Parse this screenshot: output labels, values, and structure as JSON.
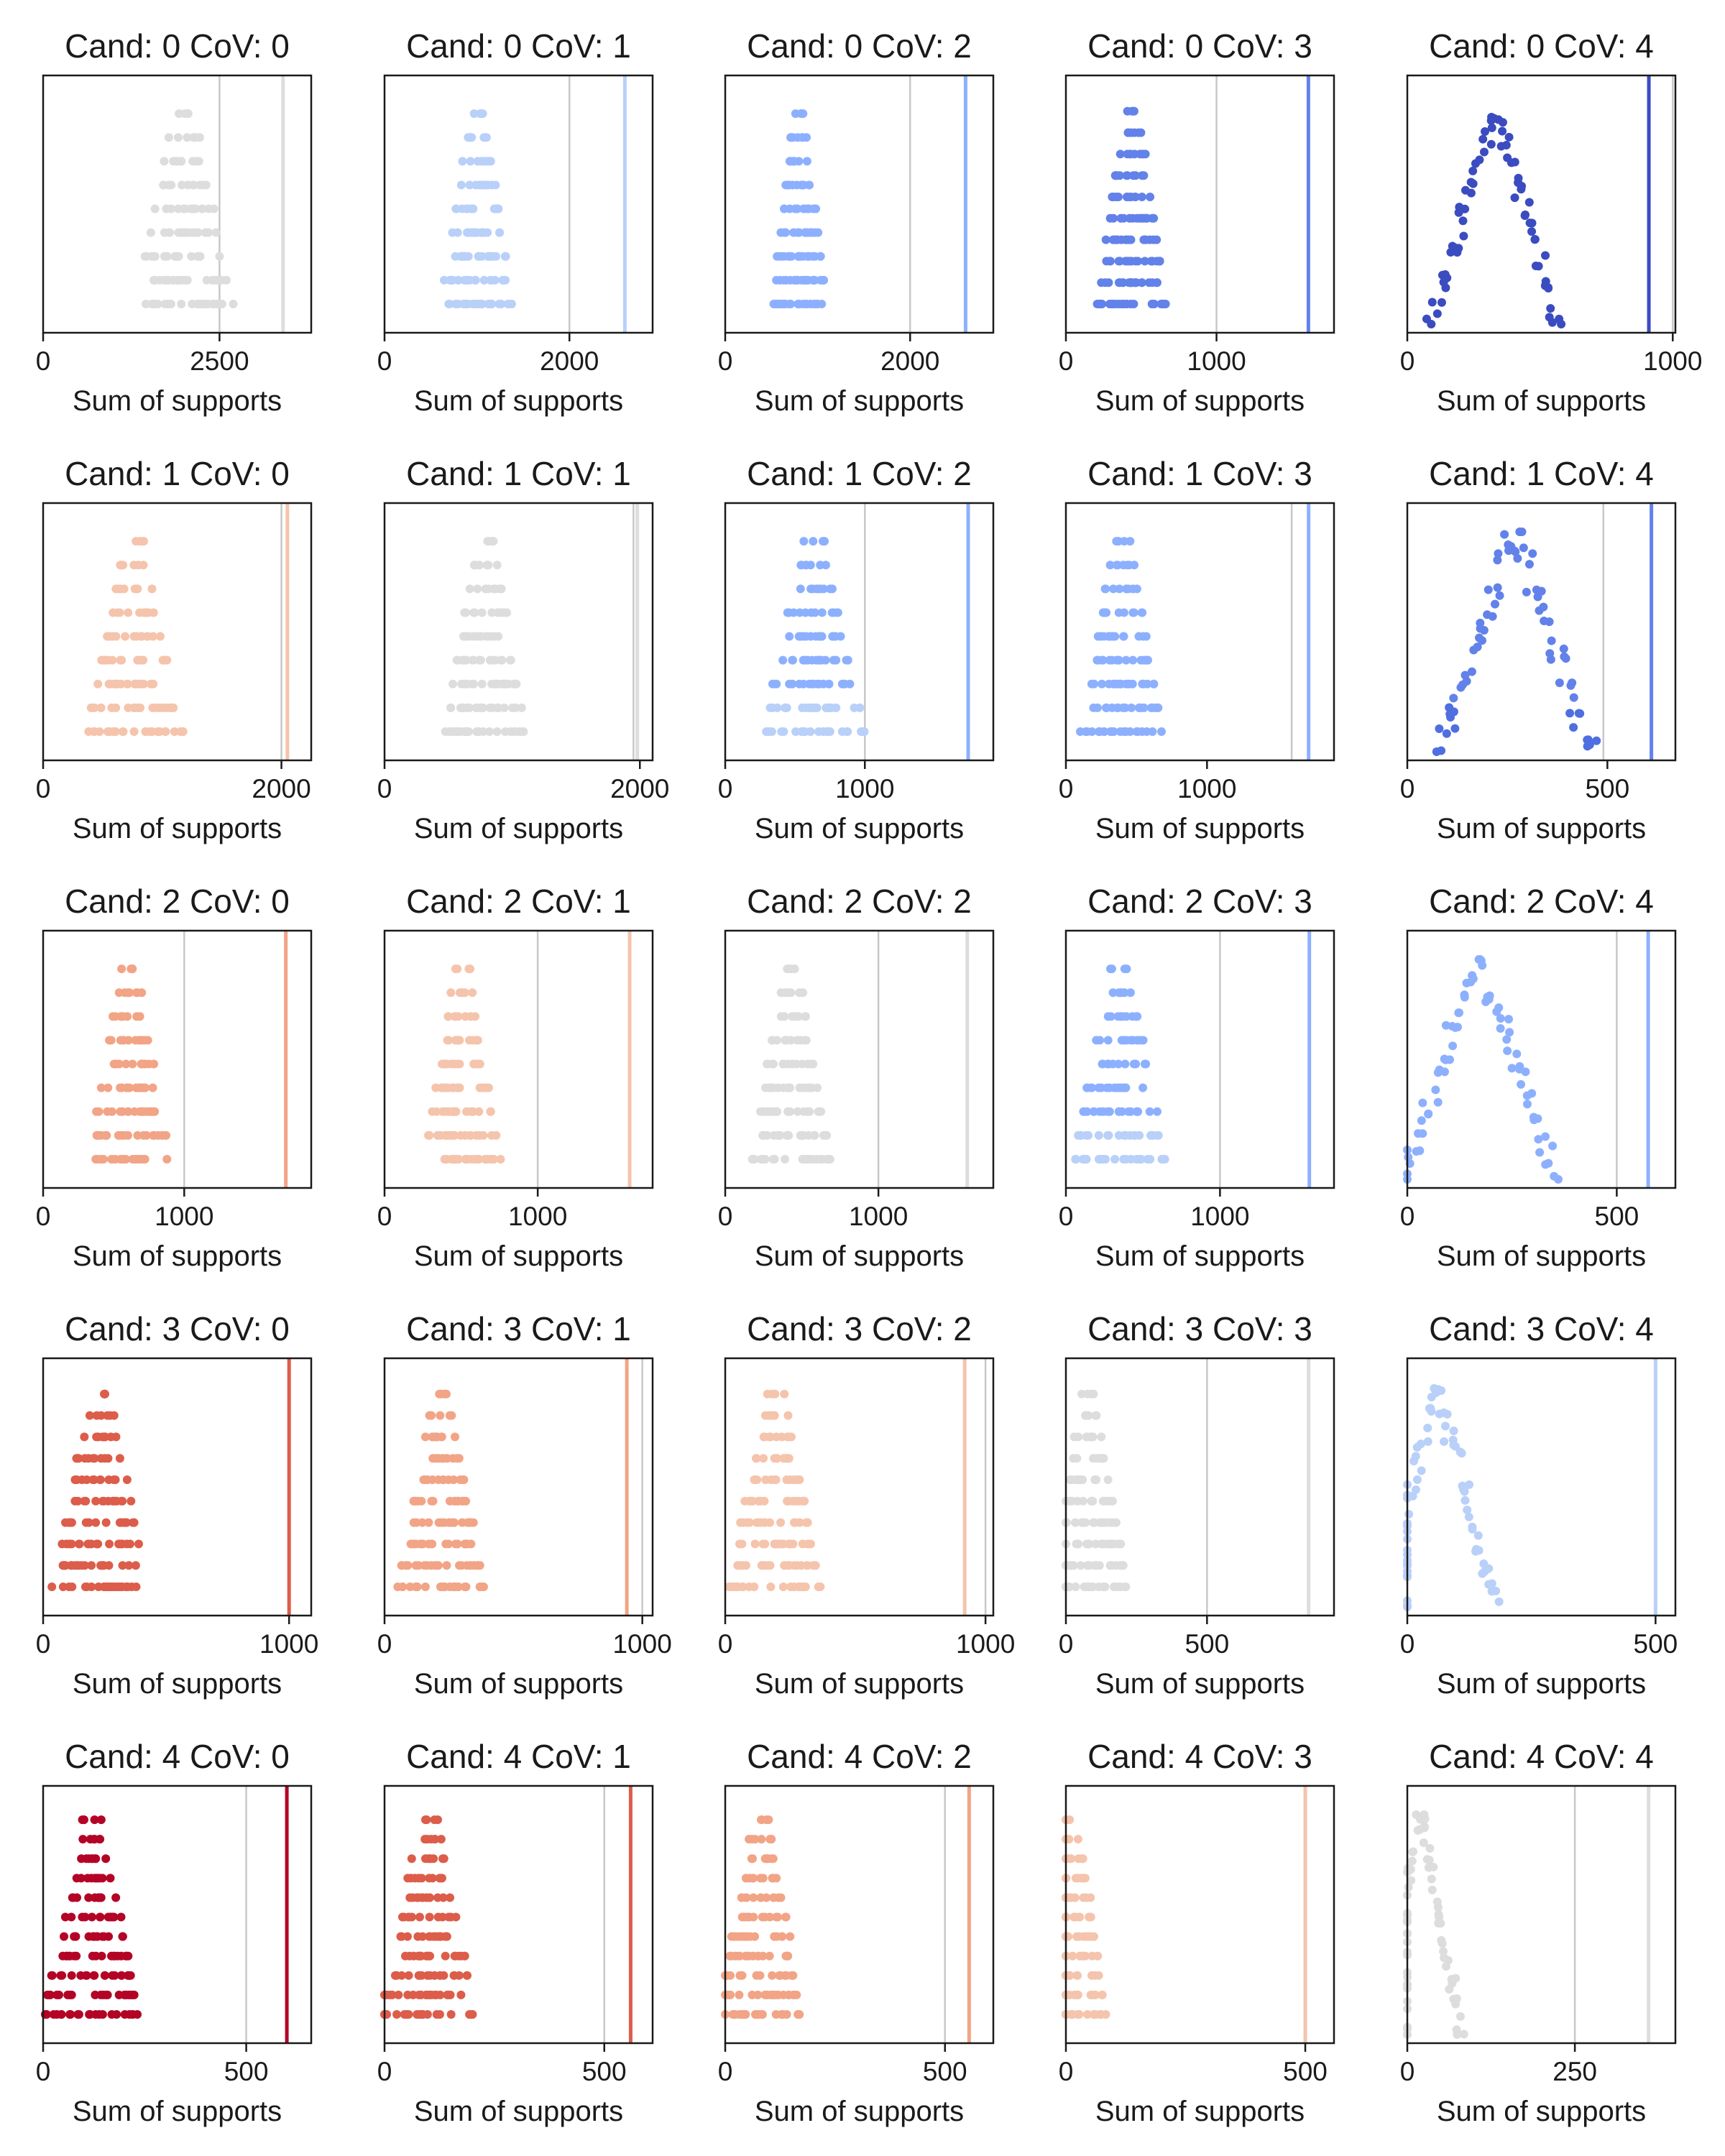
{
  "figure": {
    "background": "#ffffff",
    "grid_columns": 5,
    "grid_rows": 5,
    "reference_line_color": "#c8c8c8"
  },
  "chart_data": [
    {
      "type": "scatter",
      "title": "Cand: 0 CoV: 0",
      "xlabel": "Sum of supports",
      "xlim": [
        0,
        3800
      ],
      "xticks": [
        0,
        2500
      ],
      "xtick_labels": [
        "0",
        "2500"
      ],
      "center": 2000,
      "spread": 700,
      "levels": 9,
      "reference_line": 2500,
      "result_line": 3400,
      "color": "#dddddd",
      "shape": "triangle"
    },
    {
      "type": "scatter",
      "title": "Cand: 0 CoV: 1",
      "xlabel": "Sum of supports",
      "xlim": [
        0,
        2900
      ],
      "xticks": [
        0,
        2000
      ],
      "xtick_labels": [
        "0",
        "2000"
      ],
      "center": 1000,
      "spread": 400,
      "levels": 9,
      "reference_line": 2000,
      "result_line": 2600,
      "color": "#b9d0f9",
      "shape": "triangle"
    },
    {
      "type": "scatter",
      "title": "Cand: 0 CoV: 2",
      "xlabel": "Sum of supports",
      "xlim": [
        0,
        2900
      ],
      "xticks": [
        0,
        2000
      ],
      "xtick_labels": [
        "0",
        "2000"
      ],
      "center": 800,
      "spread": 300,
      "levels": 9,
      "reference_line": 2000,
      "result_line": 2600,
      "color": "#8db0fe",
      "shape": "triangle"
    },
    {
      "type": "scatter",
      "title": "Cand: 0 CoV: 3",
      "xlabel": "Sum of supports",
      "xlim": [
        0,
        1780
      ],
      "xticks": [
        0,
        1000
      ],
      "xtick_labels": [
        "0",
        "1000"
      ],
      "center": 440,
      "spread": 240,
      "levels": 10,
      "reference_line": 1000,
      "result_line": 1610,
      "color": "#6282ea",
      "shape": "triangle"
    },
    {
      "type": "scatter",
      "title": "Cand: 0 CoV: 4",
      "xlabel": "Sum of supports",
      "xlim": [
        0,
        1010
      ],
      "xticks": [
        0,
        1000
      ],
      "xtick_labels": [
        "0",
        "1000"
      ],
      "center": 330,
      "spread": 240,
      "levels": 14,
      "reference_line": 1000,
      "result_line": 910,
      "color": "#3b4cc0",
      "shape": "peak"
    },
    {
      "type": "scatter",
      "title": "Cand: 1 CoV: 0",
      "xlabel": "Sum of supports",
      "xlim": [
        0,
        2250
      ],
      "xticks": [
        0,
        2000
      ],
      "xtick_labels": [
        "0",
        "2000"
      ],
      "center": 780,
      "spread": 420,
      "levels": 9,
      "reference_line": 2000,
      "result_line": 2050,
      "color": "#f5c4ac",
      "shape": "triangle"
    },
    {
      "type": "scatter",
      "title": "Cand: 1 CoV: 1",
      "xlabel": "Sum of supports",
      "xlim": [
        0,
        2100
      ],
      "xticks": [
        0,
        2000
      ],
      "xtick_labels": [
        "0",
        "2000"
      ],
      "center": 790,
      "spread": 330,
      "levels": 9,
      "reference_line": 1950,
      "result_line": 1980,
      "color": "#dddddd",
      "shape": "triangle"
    },
    {
      "type": "scatter",
      "title": "Cand: 1 CoV: 2",
      "xlabel": "Sum of supports",
      "xlim": [
        0,
        1920
      ],
      "xticks": [
        0,
        1000
      ],
      "xtick_labels": [
        "0",
        "1000"
      ],
      "center": 640,
      "spread": 380,
      "levels": 9,
      "reference_line": 1000,
      "result_line": 1740,
      "color": "#8db0fe",
      "color_low": "#b9d0f9",
      "shape": "triangle"
    },
    {
      "type": "scatter",
      "title": "Cand: 1 CoV: 3",
      "xlabel": "Sum of supports",
      "xlim": [
        0,
        1900
      ],
      "xticks": [
        0,
        1000
      ],
      "xtick_labels": [
        "0",
        "1000"
      ],
      "center": 400,
      "spread": 300,
      "levels": 9,
      "reference_line": 1600,
      "result_line": 1720,
      "color": "#8db0fe",
      "shape": "triangle"
    },
    {
      "type": "scatter",
      "title": "Cand: 1 CoV: 4",
      "xlabel": "Sum of supports",
      "xlim": [
        0,
        670
      ],
      "xticks": [
        0,
        500
      ],
      "xtick_labels": [
        "0",
        "500"
      ],
      "center": 270,
      "spread": 190,
      "levels": 14,
      "reference_line": 490,
      "result_line": 610,
      "color": "#6282ea",
      "color_low": "#4f6fe0",
      "shape": "peak"
    },
    {
      "type": "scatter",
      "title": "Cand: 2 CoV: 0",
      "xlabel": "Sum of supports",
      "xlim": [
        0,
        1900
      ],
      "xticks": [
        0,
        1000
      ],
      "xtick_labels": [
        "0",
        "1000"
      ],
      "center": 610,
      "spread": 290,
      "levels": 9,
      "reference_line": 1000,
      "result_line": 1720,
      "color": "#f2a486",
      "shape": "triangle"
    },
    {
      "type": "scatter",
      "title": "Cand: 2 CoV: 1",
      "xlabel": "Sum of supports",
      "xlim": [
        0,
        1750
      ],
      "xticks": [
        0,
        1000
      ],
      "xtick_labels": [
        "0",
        "1000"
      ],
      "center": 510,
      "spread": 250,
      "levels": 9,
      "reference_line": 1000,
      "result_line": 1600,
      "color": "#f5c4ac",
      "shape": "triangle"
    },
    {
      "type": "scatter",
      "title": "Cand: 2 CoV: 2",
      "xlabel": "Sum of supports",
      "xlim": [
        0,
        1750
      ],
      "xticks": [
        0,
        1000
      ],
      "xtick_labels": [
        "0",
        "1000"
      ],
      "center": 430,
      "spread": 260,
      "levels": 9,
      "reference_line": 1000,
      "result_line": 1580,
      "color": "#dddddd",
      "shape": "triangle"
    },
    {
      "type": "scatter",
      "title": "Cand: 2 CoV: 3",
      "xlabel": "Sum of supports",
      "xlim": [
        0,
        1740
      ],
      "xticks": [
        0,
        1000
      ],
      "xtick_labels": [
        "0",
        "1000"
      ],
      "center": 350,
      "spread": 310,
      "levels": 9,
      "reference_line": 1000,
      "result_line": 1580,
      "color": "#8db0fe",
      "color_low": "#b9d0f9",
      "shape": "triangle"
    },
    {
      "type": "scatter",
      "title": "Cand: 2 CoV: 4",
      "xlabel": "Sum of supports",
      "xlim": [
        0,
        640
      ],
      "xticks": [
        0,
        500
      ],
      "xtick_labels": [
        "0",
        "500"
      ],
      "center": 170,
      "spread": 180,
      "levels": 14,
      "reference_line": 500,
      "result_line": 575,
      "color": "#8db0fe",
      "shape": "peak"
    },
    {
      "type": "scatter",
      "title": "Cand: 3 CoV: 0",
      "xlabel": "Sum of supports",
      "xlim": [
        0,
        1090
      ],
      "xticks": [
        0,
        1000
      ],
      "xtick_labels": [
        "0",
        "1000"
      ],
      "center": 230,
      "spread": 200,
      "levels": 10,
      "reference_line": 1000,
      "result_line": 1000,
      "color": "#dc5d4a",
      "shape": "triangle"
    },
    {
      "type": "scatter",
      "title": "Cand: 3 CoV: 1",
      "xlabel": "Sum of supports",
      "xlim": [
        0,
        1040
      ],
      "xticks": [
        0,
        1000
      ],
      "xtick_labels": [
        "0",
        "1000"
      ],
      "center": 220,
      "spread": 170,
      "levels": 10,
      "reference_line": 1000,
      "result_line": 940,
      "color": "#f2a486",
      "shape": "triangle"
    },
    {
      "type": "scatter",
      "title": "Cand: 3 CoV: 2",
      "xlabel": "Sum of supports",
      "xlim": [
        0,
        1030
      ],
      "xticks": [
        0,
        1000
      ],
      "xtick_labels": [
        "0",
        "1000"
      ],
      "center": 190,
      "spread": 180,
      "levels": 10,
      "reference_line": 1000,
      "result_line": 920,
      "color": "#f5c4ac",
      "shape": "triangle"
    },
    {
      "type": "scatter",
      "title": "Cand: 3 CoV: 3",
      "xlabel": "Sum of supports",
      "xlim": [
        0,
        950
      ],
      "xticks": [
        0,
        500
      ],
      "xtick_labels": [
        "0",
        "500"
      ],
      "center": 80,
      "spread": 140,
      "levels": 10,
      "reference_line": 500,
      "result_line": 860,
      "color": "#dddddd",
      "shape": "triangle"
    },
    {
      "type": "scatter",
      "title": "Cand: 3 CoV: 4",
      "xlabel": "Sum of supports",
      "xlim": [
        0,
        540
      ],
      "xticks": [
        0,
        500
      ],
      "xtick_labels": [
        "0",
        "500"
      ],
      "center": 60,
      "spread": 120,
      "levels": 14,
      "reference_line": 500,
      "result_line": 500,
      "color": "#b9d0f9",
      "shape": "peak"
    },
    {
      "type": "scatter",
      "title": "Cand: 4 CoV: 0",
      "xlabel": "Sum of supports",
      "xlim": [
        0,
        660
      ],
      "xticks": [
        0,
        500
      ],
      "xtick_labels": [
        "0",
        "500"
      ],
      "center": 120,
      "spread": 120,
      "levels": 11,
      "reference_line": 500,
      "result_line": 600,
      "color": "#b40426",
      "shape": "triangle"
    },
    {
      "type": "scatter",
      "title": "Cand: 4 CoV: 1",
      "xlabel": "Sum of supports",
      "xlim": [
        0,
        610
      ],
      "xticks": [
        0,
        500
      ],
      "xtick_labels": [
        "0",
        "500"
      ],
      "center": 100,
      "spread": 110,
      "levels": 11,
      "reference_line": 500,
      "result_line": 560,
      "color": "#dc5d4a",
      "shape": "triangle"
    },
    {
      "type": "scatter",
      "title": "Cand: 4 CoV: 2",
      "xlabel": "Sum of supports",
      "xlim": [
        0,
        610
      ],
      "xticks": [
        0,
        500
      ],
      "xtick_labels": [
        "0",
        "500"
      ],
      "center": 80,
      "spread": 100,
      "levels": 11,
      "reference_line": 500,
      "result_line": 555,
      "color": "#f2a486",
      "shape": "triangle"
    },
    {
      "type": "scatter",
      "title": "Cand: 4 CoV: 3",
      "xlabel": "Sum of supports",
      "xlim": [
        0,
        560
      ],
      "xticks": [
        0,
        500
      ],
      "xtick_labels": [
        "0",
        "500"
      ],
      "center": 10,
      "spread": 80,
      "levels": 11,
      "reference_line": 500,
      "result_line": 500,
      "color": "#f5c4ac",
      "shape": "triangle"
    },
    {
      "type": "scatter",
      "title": "Cand: 4 CoV: 4",
      "xlabel": "Sum of supports",
      "xlim": [
        0,
        400
      ],
      "xticks": [
        0,
        250
      ],
      "xtick_labels": [
        "0",
        "250"
      ],
      "center": 20,
      "spread": 60,
      "levels": 14,
      "reference_line": 250,
      "result_line": 360,
      "color": "#dddddd",
      "shape": "peak"
    }
  ]
}
